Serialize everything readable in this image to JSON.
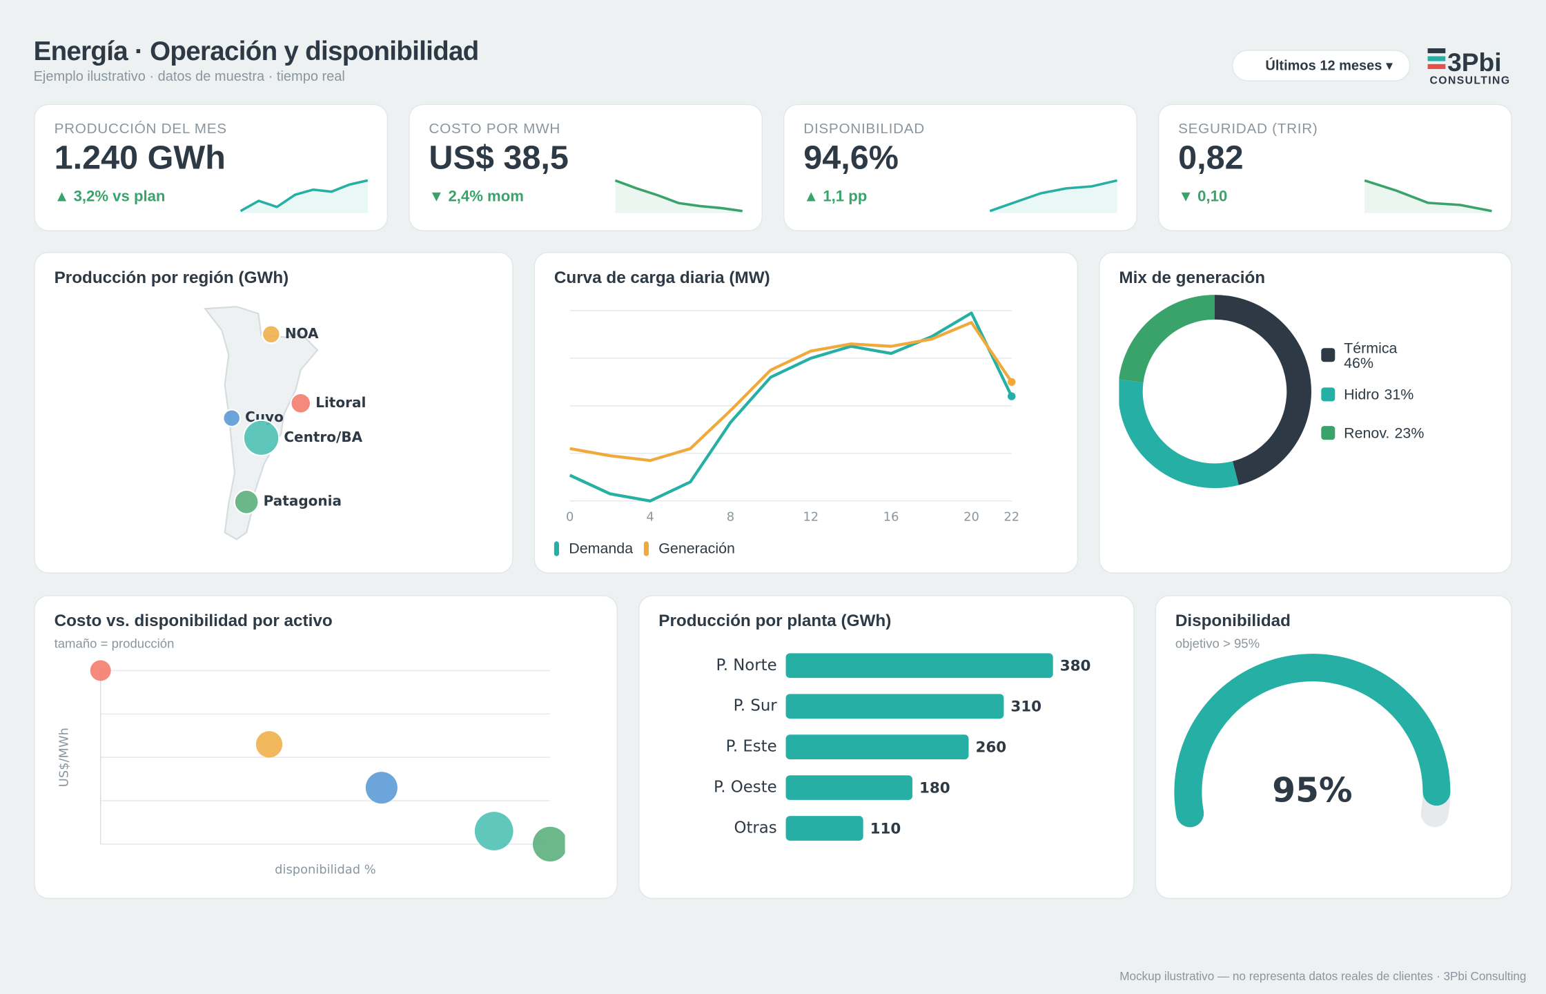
{
  "header": {
    "title": "Energía · Operación y disponibilidad",
    "subtitle": "Ejemplo ilustrativo · datos de muestra · tiempo real",
    "filter": "Últimos 12 meses ▾",
    "logo": "3Pbi",
    "logo_tagline": "CONSULTING"
  },
  "kpis": [
    {
      "label": "PRODUCCIÓN DEL MES",
      "value": "1.240 GWh",
      "delta": "▲ 3,2% vs plan",
      "spark": [
        3,
        13,
        7,
        19,
        24,
        22,
        29,
        33
      ],
      "color": "#26b0a5"
    },
    {
      "label": "COSTO POR MWH",
      "value": "US$ 38,5",
      "delta": "▼ 2,4% mom",
      "spark": [
        33,
        25,
        18,
        10,
        7,
        5,
        2
      ],
      "color": "#3aa36b"
    },
    {
      "label": "DISPONIBILIDAD",
      "value": "94,6%",
      "delta": "▲ 1,1 pp",
      "spark": [
        2,
        11,
        20,
        25,
        27,
        33
      ],
      "color": "#26b0a5"
    },
    {
      "label": "SEGURIDAD (TRIR)",
      "value": "0,82",
      "delta": "▼ 0,10",
      "spark": [
        33,
        23,
        11,
        9,
        3
      ],
      "color": "#3aa36b"
    }
  ],
  "chart_data": [
    {
      "type": "bubble-map",
      "title": "Producción por región (GWh)",
      "categories": [
        "NOA",
        "Litoral",
        "Cuyo",
        "Centro/BA",
        "Patagonia"
      ],
      "values": [
        120,
        150,
        110,
        480,
        220
      ],
      "colors": [
        "#f0b04c",
        "#f47c6e",
        "#5b9bd5",
        "#4fc1b5",
        "#5cb07e"
      ]
    },
    {
      "type": "line",
      "title": "Curva de carga diaria (MW)",
      "x": [
        0,
        2,
        4,
        6,
        8,
        10,
        12,
        14,
        16,
        18,
        20,
        22
      ],
      "xlim": [
        0,
        22
      ],
      "xticks": [
        0,
        4,
        8,
        12,
        16,
        20,
        22
      ],
      "ylim": [
        0,
        4000
      ],
      "yticks": [
        0,
        1000,
        2000,
        3000,
        4000
      ],
      "grid": true,
      "series": [
        {
          "name": "Demanda",
          "color": "#26b0a5",
          "values": [
            540,
            150,
            0,
            400,
            1650,
            2600,
            3000,
            3250,
            3100,
            3450,
            3950,
            2200
          ]
        },
        {
          "name": "Generación",
          "color": "#f0a93b",
          "values": [
            1100,
            950,
            850,
            1100,
            1900,
            2750,
            3150,
            3300,
            3250,
            3400,
            3750,
            2500
          ]
        }
      ]
    },
    {
      "type": "donut",
      "title": "Mix de generación",
      "categories": [
        "Térmica",
        "Hidro",
        "Renov."
      ],
      "values": [
        46,
        31,
        23
      ],
      "value_labels": [
        "46%",
        "31%",
        "23%"
      ],
      "colors": [
        "#2d3a45",
        "#26b0a5",
        "#3aa36b"
      ]
    },
    {
      "type": "scatter",
      "title": "Costo vs. disponibilidad por activo",
      "subtitle": "tamaño = producción",
      "x_label": "disponibilidad %",
      "y_label": "US$/MWh",
      "x": [
        88,
        92.5,
        95.5,
        98.5,
        100
      ],
      "y": [
        60,
        43,
        33,
        23,
        20
      ],
      "sizes": [
        110,
        180,
        260,
        380,
        310
      ],
      "colors": [
        "#f47c6e",
        "#f0b04c",
        "#5b9bd5",
        "#4fc1b5",
        "#5cb07e"
      ],
      "xlim": [
        88,
        100
      ],
      "ylim": [
        20,
        60
      ],
      "yticks": [
        20,
        30,
        40,
        50,
        60
      ],
      "grid": true
    },
    {
      "type": "bar",
      "title": "Producción por planta (GWh)",
      "categories": [
        "P. Norte",
        "P. Sur",
        "P. Este",
        "P. Oeste",
        "Otras"
      ],
      "values": [
        380,
        310,
        260,
        180,
        110
      ],
      "color": "#26b0a5"
    },
    {
      "type": "gauge",
      "title": "Disponibilidad",
      "subtitle": "objetivo > 95%",
      "value": 95,
      "value_label": "95%",
      "ylim": [
        0,
        100
      ],
      "color": "#26b0a5"
    }
  ],
  "footer": "Mockup ilustrativo — no representa datos reales de clientes · 3Pbi Consulting"
}
